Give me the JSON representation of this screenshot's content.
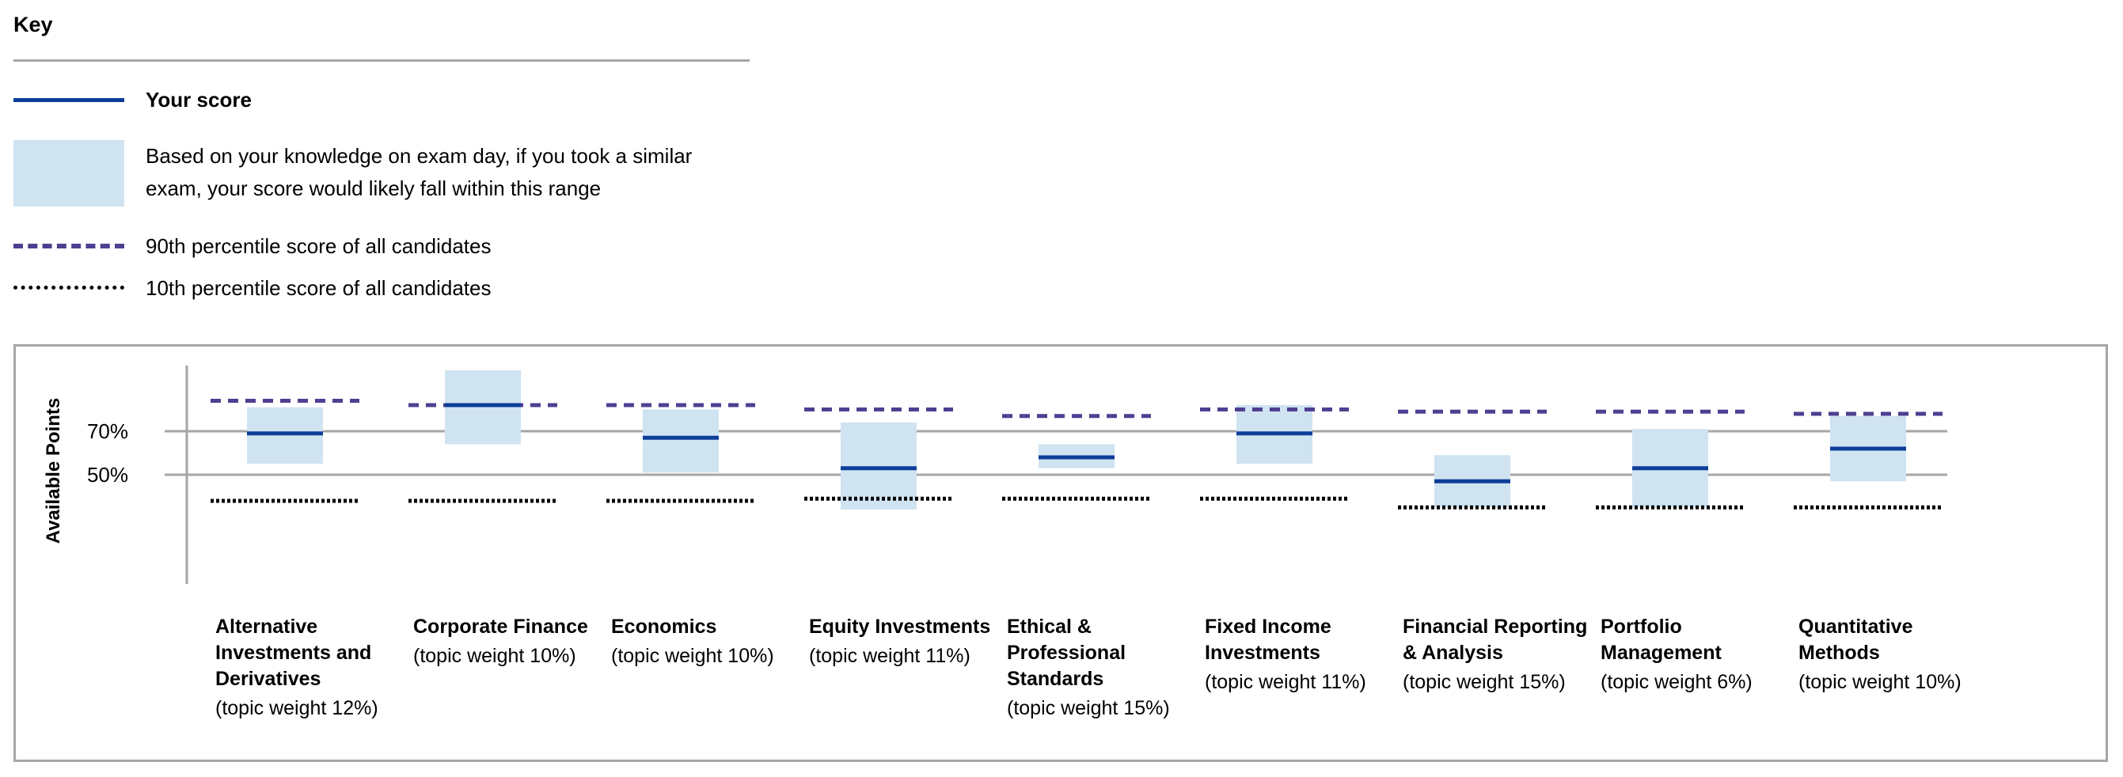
{
  "key": {
    "title": "Key",
    "your_score": "Your score",
    "range_line1": "Based on your knowledge on exam day, if you took a similar",
    "range_line2": "exam, your score would likely fall within this range",
    "p90": "90th percentile score of all candidates",
    "p10": "10th percentile score of all candidates"
  },
  "colors": {
    "score": "#0d3d99",
    "range": "#cfe3f1",
    "p90": "#4f3f91",
    "p10": "#000000",
    "gridline": "#a6a6a6"
  },
  "chart_data": {
    "type": "bar",
    "ylabel": "Available Points",
    "yticks": [
      {
        "value": 70,
        "label": "70%"
      },
      {
        "value": 50,
        "label": "50%"
      }
    ],
    "ylim": [
      0,
      100
    ],
    "categories": [
      {
        "name": "Alternative Investments and Derivatives",
        "weight": "(topic weight 12%)",
        "score": 69,
        "range": [
          55,
          81
        ],
        "p90": 84,
        "p10": 38
      },
      {
        "name": "Corporate Finance",
        "weight": "(topic weight 10%)",
        "score": 82,
        "range": [
          64,
          98
        ],
        "p90": 82,
        "p10": 38
      },
      {
        "name": "Economics",
        "weight": "(topic weight 10%)",
        "score": 67,
        "range": [
          51,
          80
        ],
        "p90": 82,
        "p10": 38
      },
      {
        "name": "Equity Investments",
        "weight": "(topic weight 11%)",
        "score": 53,
        "range": [
          34,
          74
        ],
        "p90": 80,
        "p10": 39
      },
      {
        "name": "Ethical & Professional Standards",
        "weight": "(topic weight 15%)",
        "score": 58,
        "range": [
          53,
          64
        ],
        "p90": 77,
        "p10": 39
      },
      {
        "name": "Fixed Income Investments",
        "weight": "(topic weight 11%)",
        "score": 69,
        "range": [
          55,
          82
        ],
        "p90": 80,
        "p10": 39
      },
      {
        "name": "Financial Reporting & Analysis",
        "weight": "(topic weight 15%)",
        "score": 47,
        "range": [
          35,
          59
        ],
        "p90": 79,
        "p10": 35
      },
      {
        "name": "Portfolio Management",
        "weight": "(topic weight 6%)",
        "score": 53,
        "range": [
          35,
          71
        ],
        "p90": 79,
        "p10": 35
      },
      {
        "name": "Quantitative Methods",
        "weight": "(topic weight 10%)",
        "score": 62,
        "range": [
          47,
          77
        ],
        "p90": 78,
        "p10": 35
      }
    ]
  }
}
